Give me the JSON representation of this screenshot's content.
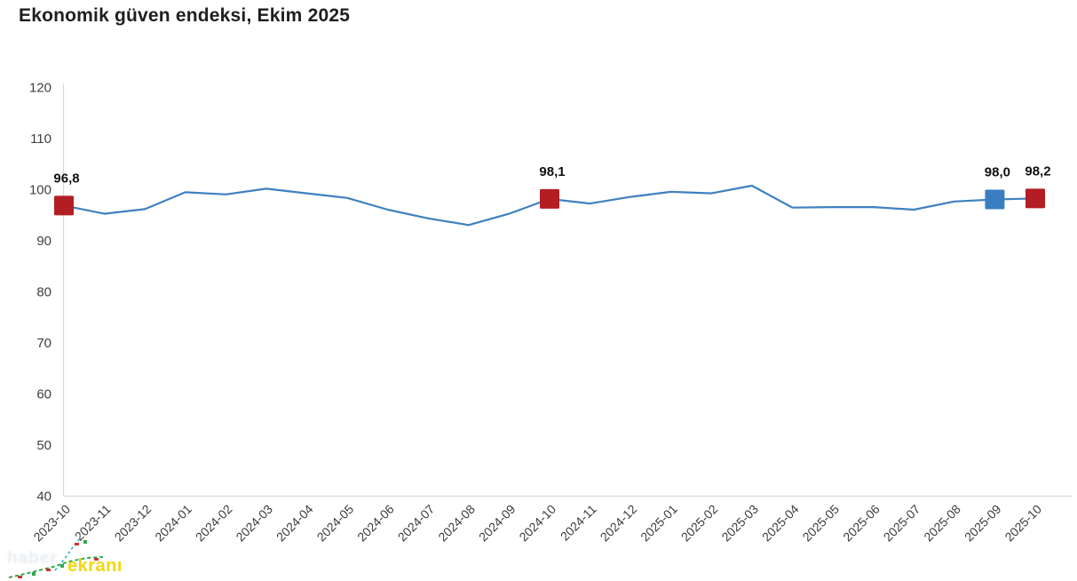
{
  "title": "Ekonomik güven endeksi, Ekim 2025",
  "watermark": {
    "faint_text": "haber",
    "brand_text": "ekranı",
    "brand_color": "#f2d70e",
    "spark_green": "#33a84c",
    "spark_red": "#cc3333",
    "spark_teal": "#2fb9a8"
  },
  "chart_data": {
    "type": "line",
    "title": "Ekonomik güven endeksi, Ekim 2025",
    "xlabel": "",
    "ylabel": "",
    "ylim": [
      40,
      120
    ],
    "yticks": [
      120,
      110,
      100,
      90,
      80,
      70,
      60,
      50,
      40
    ],
    "grid": false,
    "legend_position": "none",
    "axis_color": "#d9d9d9",
    "line_color": "#3f80c0",
    "categories": [
      "2023-10",
      "2023-11",
      "2023-12",
      "2024-01",
      "2024-02",
      "2024-03",
      "2024-04",
      "2024-05",
      "2024-06",
      "2024-07",
      "2024-08",
      "2024-09",
      "2024-10",
      "2024-11",
      "2024-12",
      "2025-01",
      "2025-02",
      "2025-03",
      "2025-04",
      "2025-05",
      "2025-06",
      "2025-07",
      "2025-08",
      "2025-09",
      "2025-10"
    ],
    "series": [
      {
        "name": "Ekonomik güven endeksi",
        "values": [
          96.8,
          95.2,
          96.1,
          99.4,
          99.0,
          100.1,
          99.2,
          98.3,
          96.0,
          94.3,
          93.0,
          95.2,
          98.1,
          97.2,
          98.5,
          99.5,
          99.2,
          100.7,
          96.4,
          96.5,
          96.5,
          96.0,
          97.6,
          98.0,
          98.2
        ]
      }
    ],
    "annotated_points": [
      {
        "index": 0,
        "category": "2023-10",
        "label": "96,8",
        "marker_color": "#b21e24"
      },
      {
        "index": 12,
        "category": "2024-10",
        "label": "98,1",
        "marker_color": "#b21e24"
      },
      {
        "index": 23,
        "category": "2025-09",
        "label": "98,0",
        "marker_color": "#3a7ec2"
      },
      {
        "index": 24,
        "category": "2025-10",
        "label": "98,2",
        "marker_color": "#b21e24"
      }
    ]
  }
}
